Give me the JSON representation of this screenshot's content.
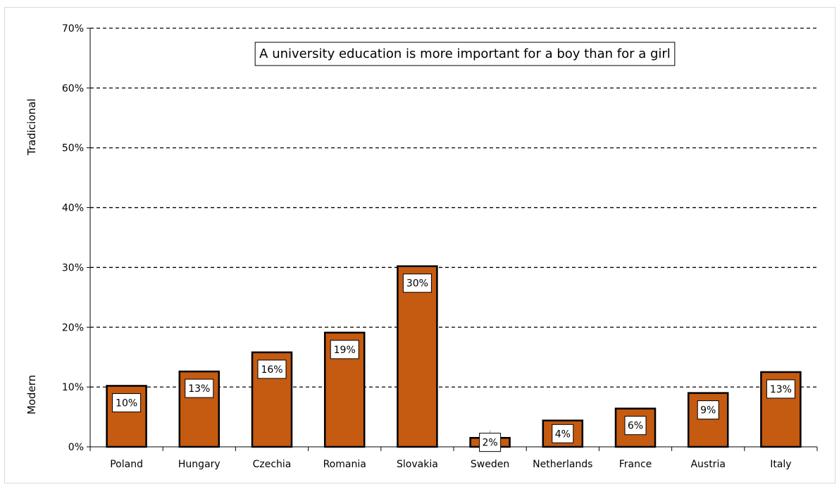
{
  "chart_data": {
    "type": "bar",
    "title": "A university education is more important for a boy than for a girl",
    "categories": [
      "Poland",
      "Hungary",
      "Czechia",
      "Romania",
      "Slovakia",
      "Sweden",
      "Netherlands",
      "France",
      "Austria",
      "Italy"
    ],
    "values": [
      10.2,
      12.6,
      15.8,
      19.1,
      30.2,
      1.5,
      4.4,
      6.4,
      9.0,
      12.5
    ],
    "data_labels": [
      "10%",
      "13%",
      "16%",
      "19%",
      "30%",
      "2%",
      "4%",
      "6%",
      "9%",
      "13%"
    ],
    "ylim": [
      0,
      70
    ],
    "yticks": [
      0,
      10,
      20,
      30,
      40,
      50,
      60,
      70
    ],
    "ytick_labels": [
      "0%",
      "10%",
      "20%",
      "30%",
      "40%",
      "50%",
      "60%",
      "70%"
    ],
    "ylabel_top": "Tradicional",
    "ylabel_bottom": "Modern",
    "grid": "dashed horizontal",
    "colors": {
      "bar": "#c55a11",
      "bar_border": "#000000",
      "grid": "#000000"
    }
  }
}
